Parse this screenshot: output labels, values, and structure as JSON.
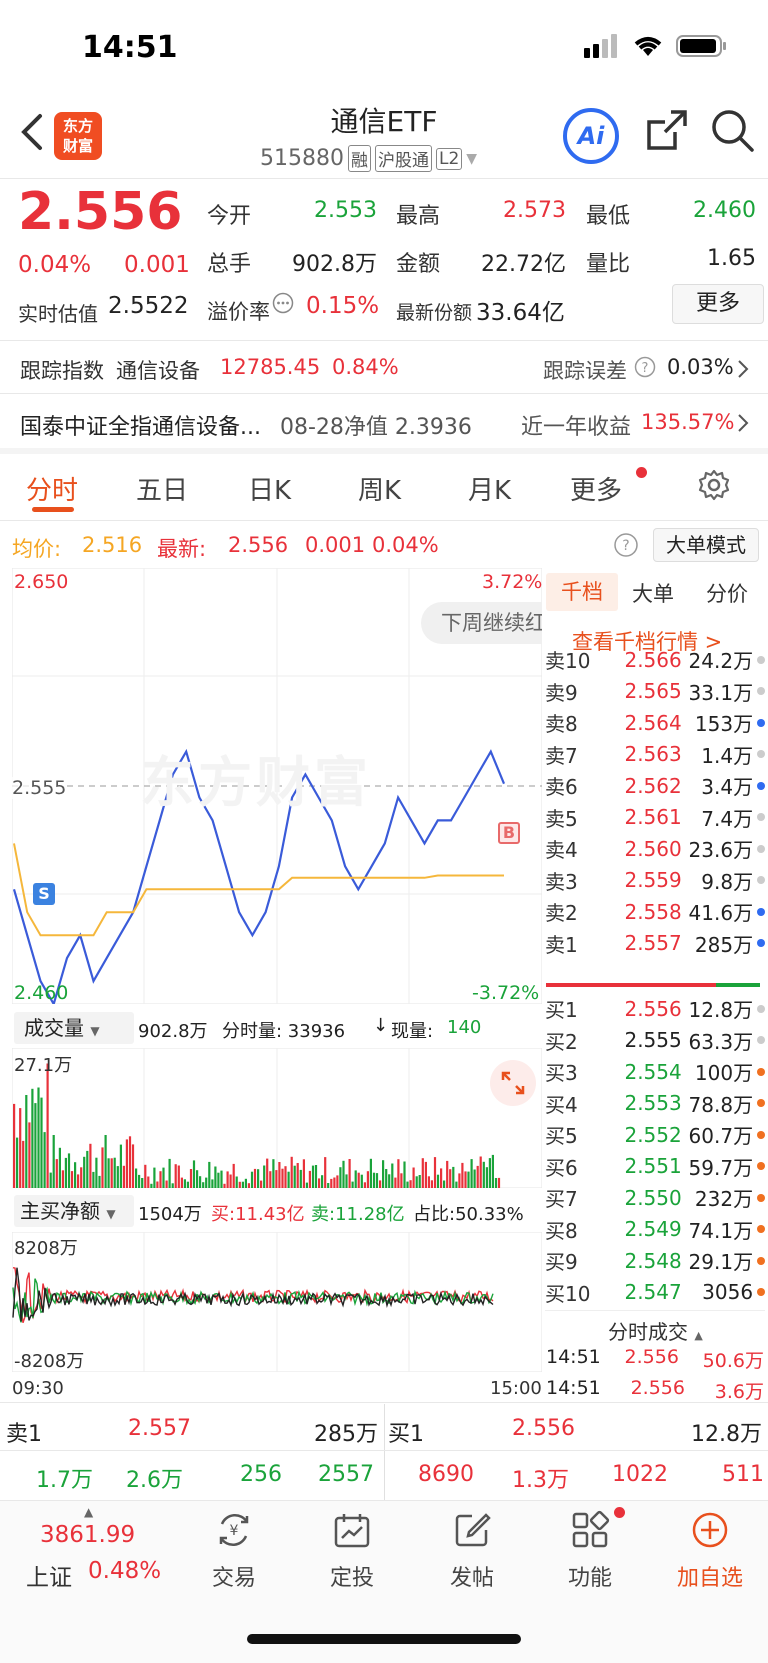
{
  "status": {
    "time": "14:51"
  },
  "header": {
    "title": "通信ETF",
    "code": "515880",
    "tags": [
      "融",
      "沪股通",
      "L2"
    ],
    "logo_text": "东方\n财富",
    "ai_label": "Ai"
  },
  "quote": {
    "price": "2.556",
    "change_pct": "0.04%",
    "change": "0.001",
    "open_label": "今开",
    "open": "2.553",
    "high_label": "最高",
    "high": "2.573",
    "low_label": "最低",
    "low": "2.460",
    "vol_label": "总手",
    "vol": "902.8万",
    "amount_label": "金额",
    "amount": "22.72亿",
    "ratio_label": "量比",
    "ratio": "1.65",
    "iopv_label": "实时估值",
    "iopv": "2.5522",
    "premium_label": "溢价率",
    "premium": "0.15%",
    "shares_label": "最新份额",
    "shares": "33.64亿",
    "more_label": "更多"
  },
  "tracking": {
    "index_label": "跟踪指数",
    "index_name": "通信设备",
    "index_value": "12785.45",
    "index_pct": "0.84%",
    "error_label": "跟踪误差",
    "error_value": "0.03%"
  },
  "fund": {
    "name": "国泰中证全指通信设备...",
    "nav_text": "08-28净值 2.3936",
    "return_label": "近一年收益",
    "return_value": "135.57%"
  },
  "tabs": [
    "分时",
    "五日",
    "日K",
    "周K",
    "月K",
    "更多"
  ],
  "chart_info": {
    "avg_label": "均价:",
    "avg": "2.516",
    "latest_label": "最新:",
    "latest": "2.556",
    "latest_chg": "0.001",
    "latest_pct": "0.04%",
    "mode_label": "大单模式",
    "y_top": "2.650",
    "y_mid": "2.555",
    "y_bottom": "2.460",
    "pct_top": "3.72%",
    "pct_bottom": "-3.72%",
    "banner": "下周继续红",
    "watermark": "东方财富",
    "marker_s": "S",
    "marker_b": "B",
    "vol_selector": "成交量",
    "vol_total": "902.8万",
    "vol_tick_label": "分时量: 33936",
    "vol_now_label": "现量:",
    "vol_now": "140",
    "vol_max": "27.1万",
    "flow_selector": "主买净额",
    "flow_total": "1504万",
    "flow_buy_label": "买:11.43亿",
    "flow_sell_label": "卖:11.28亿",
    "flow_ratio": "占比:50.33%",
    "flow_top": "8208万",
    "flow_bottom": "-8208万",
    "time_start": "09:30",
    "time_end": "15:00"
  },
  "chart_data": {
    "type": "line",
    "title": "",
    "series": [
      {
        "name": "最新",
        "values": [
          2.51,
          2.49,
          2.47,
          2.46,
          2.48,
          2.49,
          2.47,
          2.48,
          2.49,
          2.5,
          2.52,
          2.54,
          2.56,
          2.57,
          2.55,
          2.54,
          2.52,
          2.5,
          2.49,
          2.5,
          2.52,
          2.55,
          2.56,
          2.55,
          2.54,
          2.52,
          2.51,
          2.52,
          2.53,
          2.55,
          2.54,
          2.53,
          2.54,
          2.54,
          2.55,
          2.56,
          2.57,
          2.556
        ]
      },
      {
        "name": "均价",
        "values": [
          2.53,
          2.5,
          2.49,
          2.49,
          2.49,
          2.49,
          2.49,
          2.5,
          2.5,
          2.5,
          2.51,
          2.51,
          2.51,
          2.51,
          2.51,
          2.51,
          2.51,
          2.51,
          2.51,
          2.51,
          2.51,
          2.515,
          2.515,
          2.515,
          2.515,
          2.515,
          2.515,
          2.515,
          2.515,
          2.515,
          2.515,
          2.515,
          2.516,
          2.516,
          2.516,
          2.516,
          2.516,
          2.516
        ]
      }
    ],
    "ylim": [
      2.46,
      2.65
    ],
    "xlabel": "",
    "ylabel": ""
  },
  "order_book": {
    "tabs": [
      "千档",
      "大单",
      "分价"
    ],
    "link": "查看千档行情 >",
    "asks": [
      {
        "label": "卖10",
        "price": "2.566",
        "vol": "24.2万",
        "dot": "#cccccc"
      },
      {
        "label": "卖9",
        "price": "2.565",
        "vol": "33.1万",
        "dot": "#cccccc"
      },
      {
        "label": "卖8",
        "price": "2.564",
        "vol": "153万",
        "dot": "#2f6bf0"
      },
      {
        "label": "卖7",
        "price": "2.563",
        "vol": "1.4万",
        "dot": "#cccccc"
      },
      {
        "label": "卖6",
        "price": "2.562",
        "vol": "3.4万",
        "dot": "#2f6bf0"
      },
      {
        "label": "卖5",
        "price": "2.561",
        "vol": "7.4万",
        "dot": "#cccccc"
      },
      {
        "label": "卖4",
        "price": "2.560",
        "vol": "23.6万",
        "dot": "#cccccc"
      },
      {
        "label": "卖3",
        "price": "2.559",
        "vol": "9.8万",
        "dot": "#cccccc"
      },
      {
        "label": "卖2",
        "price": "2.558",
        "vol": "41.6万",
        "dot": "#2f6bf0"
      },
      {
        "label": "卖1",
        "price": "2.557",
        "vol": "285万",
        "dot": "#2f6bf0"
      }
    ],
    "bids": [
      {
        "label": "买1",
        "price": "2.556",
        "vol": "12.8万",
        "dot": "#cccccc",
        "pc": "red"
      },
      {
        "label": "买2",
        "price": "2.555",
        "vol": "63.3万",
        "dot": "#cccccc",
        "pc": "dark"
      },
      {
        "label": "买3",
        "price": "2.554",
        "vol": "100万",
        "dot": "#f07020",
        "pc": "green"
      },
      {
        "label": "买4",
        "price": "2.553",
        "vol": "78.8万",
        "dot": "#f07020",
        "pc": "green"
      },
      {
        "label": "买5",
        "price": "2.552",
        "vol": "60.7万",
        "dot": "#f07020",
        "pc": "green"
      },
      {
        "label": "买6",
        "price": "2.551",
        "vol": "59.7万",
        "dot": "#f07020",
        "pc": "green"
      },
      {
        "label": "买7",
        "price": "2.550",
        "vol": "232万",
        "dot": "#f07020",
        "pc": "green"
      },
      {
        "label": "买8",
        "price": "2.549",
        "vol": "74.1万",
        "dot": "#f07020",
        "pc": "green"
      },
      {
        "label": "买9",
        "price": "2.548",
        "vol": "29.1万",
        "dot": "#f07020",
        "pc": "green"
      },
      {
        "label": "买10",
        "price": "2.547",
        "vol": "3056",
        "dot": "#f07020",
        "pc": "green"
      }
    ],
    "ticks_header": "分时成交",
    "ticks": [
      {
        "time": "14:51",
        "price": "2.556",
        "vol": "50.6万"
      },
      {
        "time": "14:51",
        "price": "2.556",
        "vol": "3.6万"
      }
    ]
  },
  "bottom_quote": {
    "sell_label": "卖1",
    "sell_price": "2.557",
    "sell_vol": "285万",
    "buy_label": "买1",
    "buy_price": "2.556",
    "buy_vol": "12.8万",
    "sell_queue": [
      "1.7万",
      "2.6万",
      "256",
      "2557"
    ],
    "buy_queue": [
      "8690",
      "1.3万",
      "1022",
      "511"
    ]
  },
  "bottom_nav": {
    "index_value": "3861.99",
    "index_name": "上证",
    "index_pct": "0.48%",
    "items": [
      "交易",
      "定投",
      "发帖",
      "功能",
      "加自选"
    ]
  }
}
